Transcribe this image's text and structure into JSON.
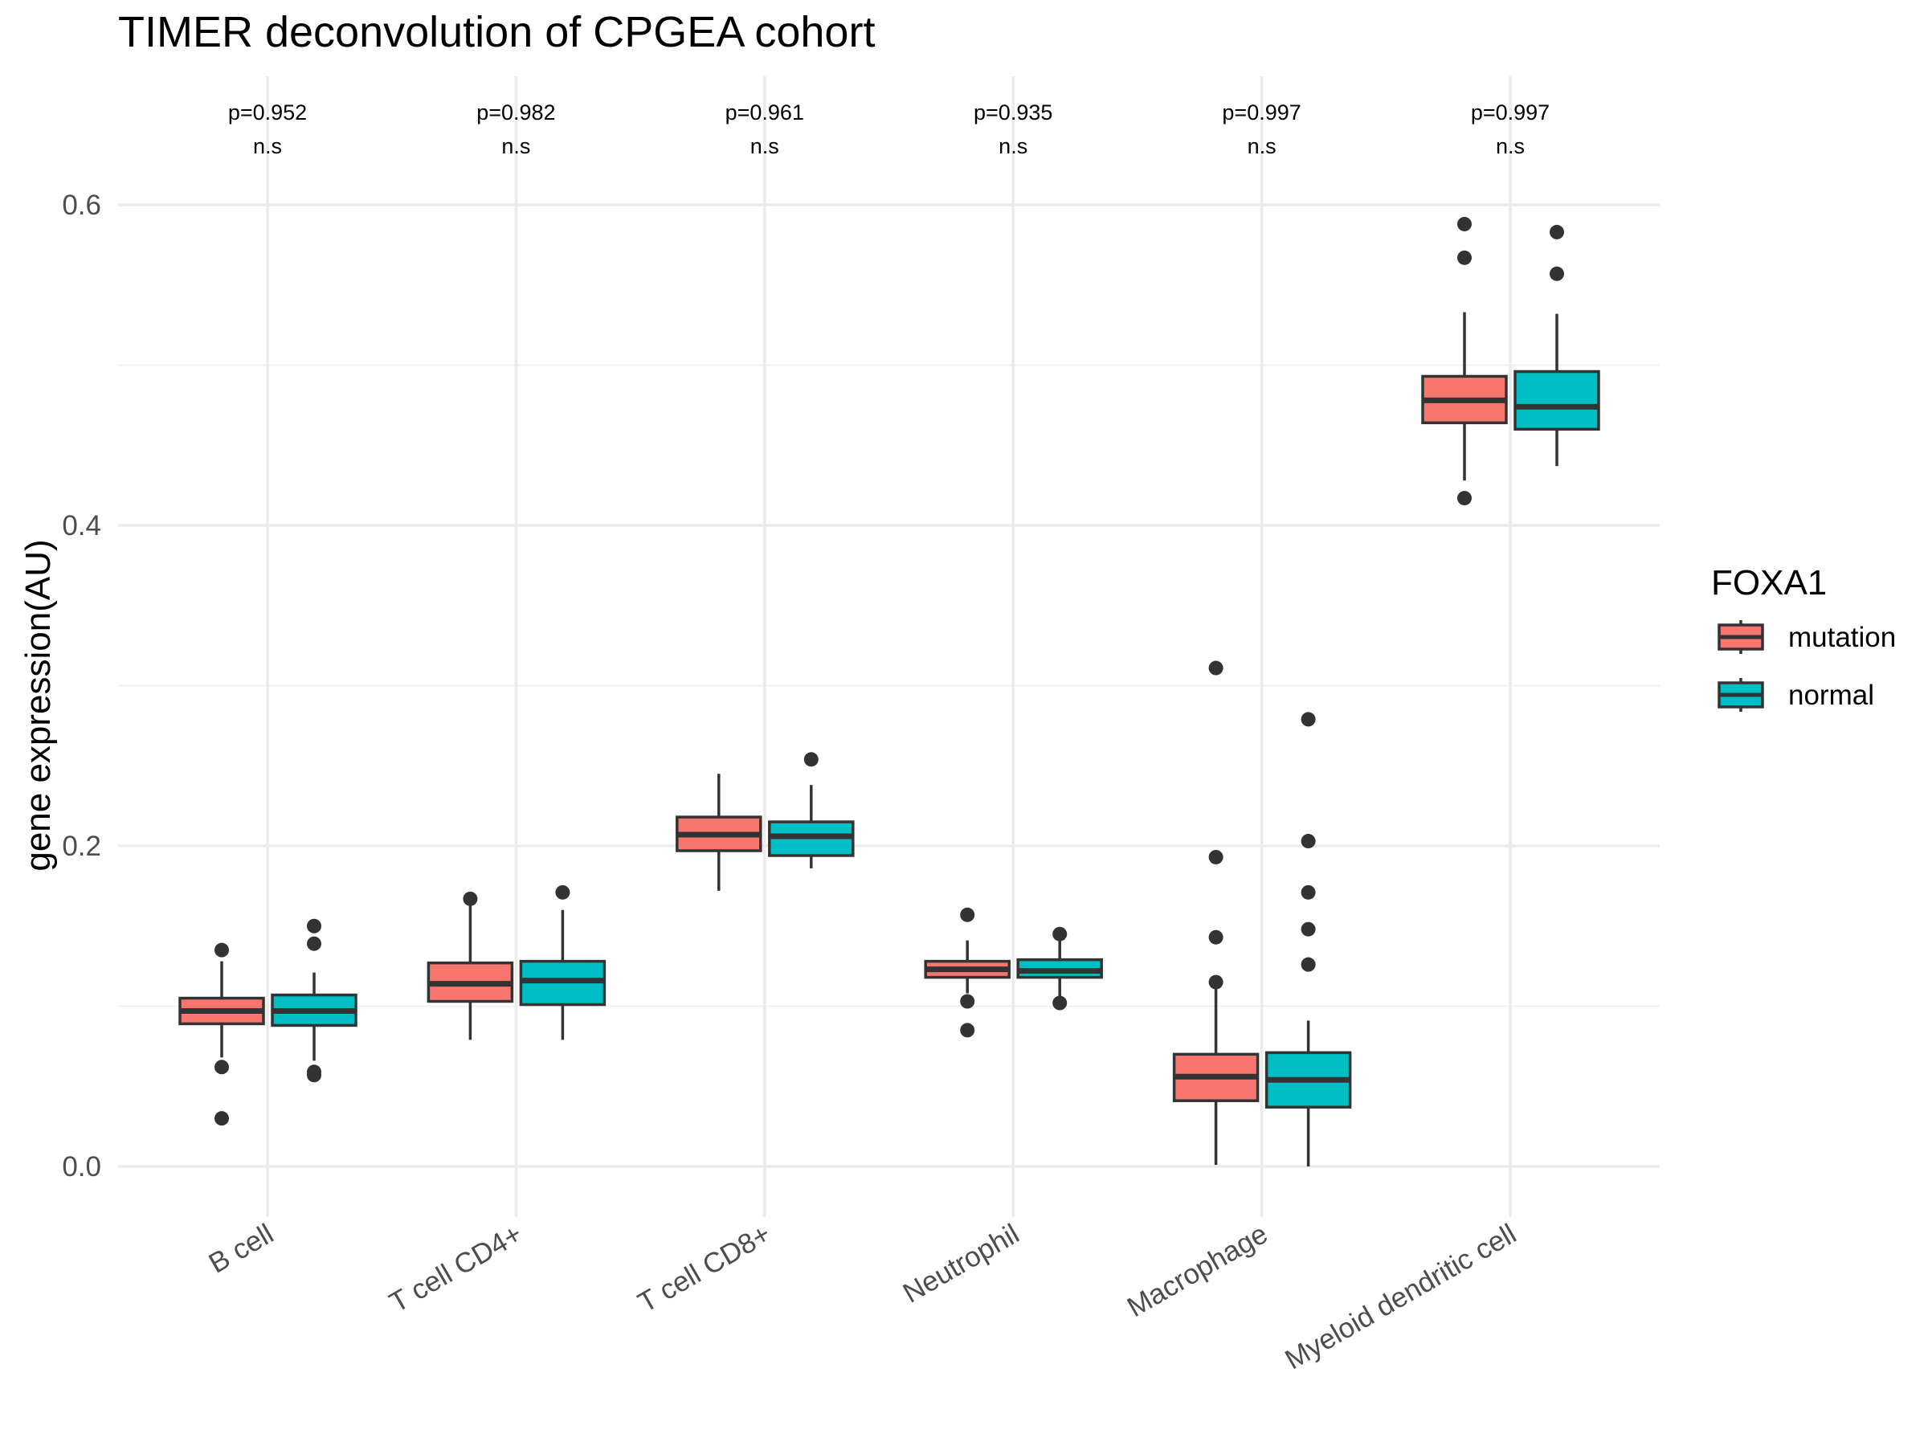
{
  "chart_data": {
    "type": "boxplot",
    "title": "TIMER deconvolution of CPGEA cohort",
    "xlabel": "",
    "ylabel": "gene expression(AU)",
    "ylim": [
      -0.03,
      0.675
    ],
    "yticks": [
      0.0,
      0.2,
      0.4,
      0.6
    ],
    "ytick_labels": [
      "0.0",
      "0.2",
      "0.4",
      "0.6"
    ],
    "grid": true,
    "legend": {
      "title": "FOXA1",
      "position": "right",
      "entries": [
        {
          "name": "mutation",
          "color": "#F8766D"
        },
        {
          "name": "normal",
          "color": "#00BFC4"
        }
      ]
    },
    "categories": [
      "B cell",
      "T cell CD4+",
      "T cell CD8+",
      "Neutrophil",
      "Macrophage",
      "Myeloid dendritic cell"
    ],
    "annotations": [
      {
        "p": "p=0.952",
        "sig": "n.s"
      },
      {
        "p": "p=0.982",
        "sig": "n.s"
      },
      {
        "p": "p=0.961",
        "sig": "n.s"
      },
      {
        "p": "p=0.935",
        "sig": "n.s"
      },
      {
        "p": "p=0.997",
        "sig": "n.s"
      },
      {
        "p": "p=0.997",
        "sig": "n.s"
      }
    ],
    "series": [
      {
        "name": "mutation",
        "color": "#F8766D",
        "boxes": [
          {
            "whisker_low": 0.068,
            "q1": 0.089,
            "median": 0.097,
            "q3": 0.105,
            "whisker_high": 0.128,
            "outliers": [
              0.135,
              0.062,
              0.03
            ]
          },
          {
            "whisker_low": 0.079,
            "q1": 0.103,
            "median": 0.114,
            "q3": 0.127,
            "whisker_high": 0.166,
            "outliers": [
              0.167
            ]
          },
          {
            "whisker_low": 0.172,
            "q1": 0.197,
            "median": 0.207,
            "q3": 0.218,
            "whisker_high": 0.245,
            "outliers": []
          },
          {
            "whisker_low": 0.108,
            "q1": 0.118,
            "median": 0.123,
            "q3": 0.128,
            "whisker_high": 0.141,
            "outliers": [
              0.157,
              0.103,
              0.085
            ]
          },
          {
            "whisker_low": 0.001,
            "q1": 0.041,
            "median": 0.056,
            "q3": 0.07,
            "whisker_high": 0.112,
            "outliers": [
              0.311,
              0.193,
              0.143,
              0.115
            ]
          },
          {
            "whisker_low": 0.428,
            "q1": 0.464,
            "median": 0.478,
            "q3": 0.493,
            "whisker_high": 0.533,
            "outliers": [
              0.588,
              0.567,
              0.417
            ]
          }
        ]
      },
      {
        "name": "normal",
        "color": "#00BFC4",
        "boxes": [
          {
            "whisker_low": 0.066,
            "q1": 0.088,
            "median": 0.097,
            "q3": 0.107,
            "whisker_high": 0.121,
            "outliers": [
              0.15,
              0.139,
              0.059,
              0.057
            ]
          },
          {
            "whisker_low": 0.079,
            "q1": 0.101,
            "median": 0.116,
            "q3": 0.128,
            "whisker_high": 0.16,
            "outliers": [
              0.171
            ]
          },
          {
            "whisker_low": 0.186,
            "q1": 0.194,
            "median": 0.206,
            "q3": 0.215,
            "whisker_high": 0.238,
            "outliers": [
              0.254
            ]
          },
          {
            "whisker_low": 0.103,
            "q1": 0.118,
            "median": 0.122,
            "q3": 0.129,
            "whisker_high": 0.144,
            "outliers": [
              0.145,
              0.102
            ]
          },
          {
            "whisker_low": 0.0,
            "q1": 0.037,
            "median": 0.054,
            "q3": 0.071,
            "whisker_high": 0.091,
            "outliers": [
              0.279,
              0.203,
              0.171,
              0.148,
              0.126
            ]
          },
          {
            "whisker_low": 0.437,
            "q1": 0.46,
            "median": 0.474,
            "q3": 0.496,
            "whisker_high": 0.532,
            "outliers": [
              0.583,
              0.557
            ]
          }
        ]
      }
    ]
  }
}
